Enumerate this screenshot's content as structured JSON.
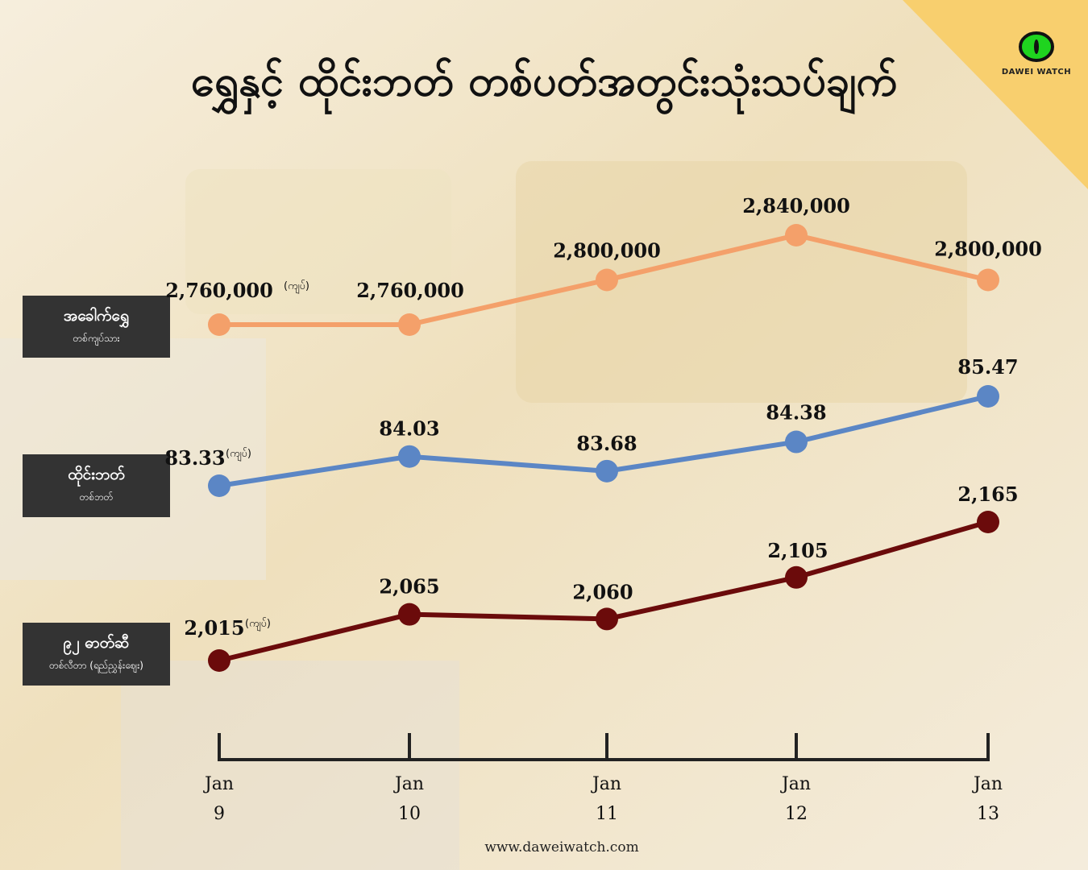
{
  "title": "ရွှေနှင့် ထိုင်းဘတ် တစ်ပတ်အတွင်းသုံးသပ်ချက်",
  "logo": {
    "text": "DAWEI WATCH",
    "icon": "eye-icon"
  },
  "series_labels": [
    {
      "main": "အခေါက်ရွှေ",
      "sub": "တစ်ကျပ်သား"
    },
    {
      "main": "ထိုင်းဘတ်",
      "sub": "တစ်ဘတ်"
    },
    {
      "main": "၉၂ ဓာတ်ဆီ",
      "sub": "တစ်လီတာ (ရည်ညွှန်းဈေး)"
    }
  ],
  "unit_label": "(ကျပ်)",
  "footer": "www.daweiwatch.com",
  "colors": {
    "gold": "#f4a06a",
    "baht": "#5b86c5",
    "fuel": "#6b0b0b",
    "axis": "#222222",
    "corner": "#f8cf6e"
  },
  "chart_data": {
    "type": "line",
    "categories": [
      "Jan 9",
      "Jan 10",
      "Jan 11",
      "Jan 12",
      "Jan 13"
    ],
    "tick_labels": [
      [
        "Jan",
        "9"
      ],
      [
        "Jan",
        "10"
      ],
      [
        "Jan",
        "11"
      ],
      [
        "Jan",
        "12"
      ],
      [
        "Jan",
        "13"
      ]
    ],
    "series": [
      {
        "name": "အခေါက်ရွှေ",
        "values": [
          2760000,
          2760000,
          2800000,
          2840000,
          2800000
        ],
        "labels": [
          "2,760,000",
          "2,760,000",
          "2,800,000",
          "2,840,000",
          "2,800,000"
        ],
        "color": "#f4a06a"
      },
      {
        "name": "ထိုင်းဘတ်",
        "values": [
          83.33,
          84.03,
          83.68,
          84.38,
          85.47
        ],
        "labels": [
          "83.33",
          "84.03",
          "83.68",
          "84.38",
          "85.47"
        ],
        "color": "#5b86c5"
      },
      {
        "name": "၉၂ ဓာတ်ဆီ",
        "values": [
          2015,
          2065,
          2060,
          2105,
          2165
        ],
        "labels": [
          "2,015",
          "2,065",
          "2,060",
          "2,105",
          "2,165"
        ],
        "color": "#6b0b0b"
      }
    ],
    "grid": false
  }
}
